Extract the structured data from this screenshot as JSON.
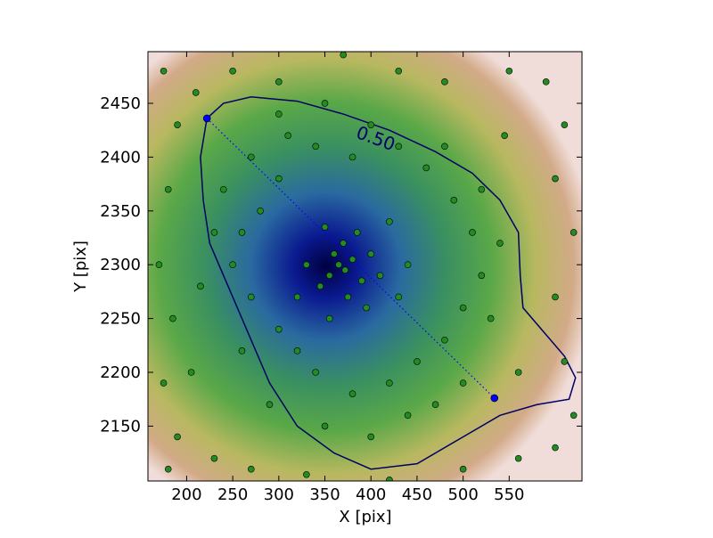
{
  "chart_data": {
    "type": "scatter",
    "xlabel": "X [pix]",
    "ylabel": "Y [pix]",
    "xlim": [
      158,
      629
    ],
    "ylim": [
      2099,
      2498
    ],
    "xticks": [
      200,
      250,
      300,
      350,
      400,
      450,
      500,
      550
    ],
    "yticks": [
      2150,
      2200,
      2250,
      2300,
      2350,
      2400,
      2450
    ],
    "points": {
      "color": "#228b22",
      "x": [
        365,
        372,
        360,
        380,
        355,
        370,
        390,
        345,
        400,
        385,
        350,
        410,
        375,
        395,
        330,
        420,
        440,
        430,
        355,
        320,
        300,
        280,
        260,
        250,
        270,
        300,
        320,
        340,
        380,
        420,
        450,
        480,
        500,
        520,
        510,
        490,
        460,
        430,
        380,
        340,
        310,
        270,
        240,
        230,
        260,
        290,
        350,
        400,
        440,
        470,
        500,
        530,
        540,
        520,
        480,
        400,
        350,
        300,
        175,
        190,
        180,
        170,
        185,
        175,
        190,
        180,
        230,
        270,
        330,
        420,
        500,
        560,
        600,
        620,
        610,
        600,
        620,
        600,
        610,
        590,
        550,
        480,
        430,
        370,
        300,
        250,
        210,
        560,
        545,
        205,
        215
      ],
      "y": [
        2300,
        2295,
        2310,
        2305,
        2290,
        2320,
        2285,
        2280,
        2310,
        2330,
        2335,
        2290,
        2270,
        2260,
        2300,
        2340,
        2300,
        2270,
        2250,
        2270,
        2380,
        2350,
        2330,
        2300,
        2270,
        2240,
        2220,
        2200,
        2180,
        2190,
        2210,
        2230,
        2260,
        2290,
        2330,
        2360,
        2390,
        2410,
        2400,
        2410,
        2420,
        2400,
        2370,
        2330,
        2220,
        2170,
        2150,
        2140,
        2160,
        2170,
        2190,
        2250,
        2320,
        2370,
        2410,
        2430,
        2450,
        2440,
        2480,
        2430,
        2370,
        2300,
        2250,
        2190,
        2140,
        2110,
        2120,
        2110,
        2105,
        2100,
        2110,
        2120,
        2130,
        2160,
        2210,
        2270,
        2330,
        2380,
        2430,
        2470,
        2480,
        2470,
        2480,
        2495,
        2470,
        2480,
        2460,
        2200,
        2420,
        2200,
        2280
      ]
    },
    "endpoints": {
      "color": "#0000ff",
      "x": [
        222,
        534
      ],
      "y": [
        2436,
        2176
      ]
    },
    "contour": {
      "label": "0.50",
      "color": "#000066",
      "x": [
        222,
        240,
        270,
        320,
        370,
        420,
        470,
        510,
        540,
        560,
        562,
        565,
        590,
        610,
        622,
        615,
        580,
        540,
        500,
        450,
        400,
        360,
        320,
        290,
        270,
        255,
        240,
        225,
        218,
        215,
        222
      ],
      "y": [
        2436,
        2450,
        2456,
        2452,
        2440,
        2425,
        2405,
        2385,
        2360,
        2330,
        2290,
        2260,
        2235,
        2215,
        2195,
        2175,
        2170,
        2160,
        2140,
        2115,
        2110,
        2125,
        2150,
        2190,
        2230,
        2260,
        2290,
        2320,
        2360,
        2400,
        2436
      ]
    }
  }
}
